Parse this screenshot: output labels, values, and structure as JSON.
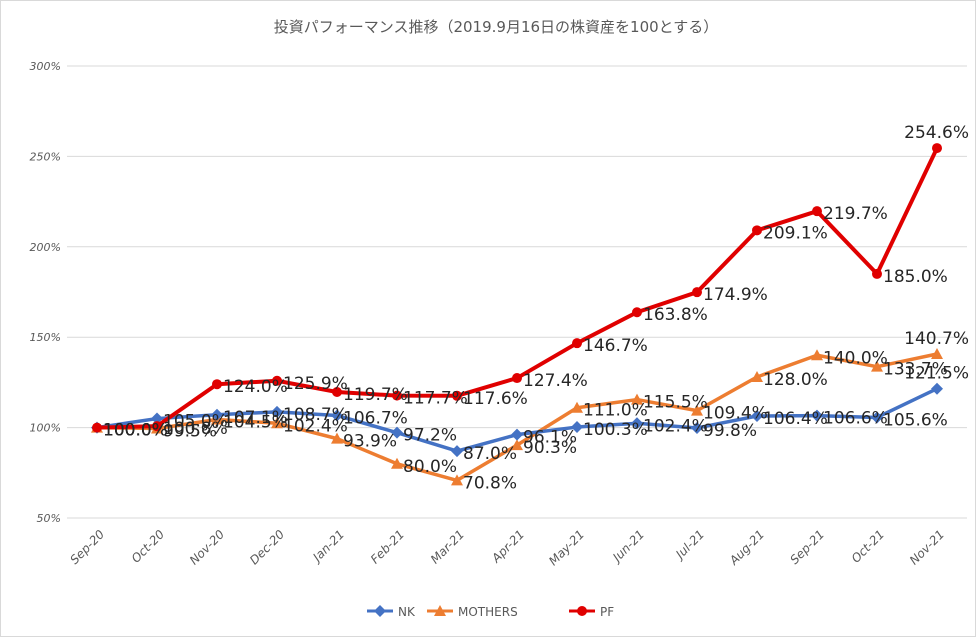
{
  "chart_data": {
    "type": "line",
    "title": "投資パフォーマンス推移（2019.9月16日の株資産を100とする）",
    "categories": [
      "Sep-20",
      "Oct-20",
      "Nov-20",
      "Dec-20",
      "Jan-21",
      "Feb-21",
      "Mar-21",
      "Apr-21",
      "May-21",
      "Jun-21",
      "Jul-21",
      "Aug-21",
      "Sep-21",
      "Oct-21",
      "Nov-21"
    ],
    "y_ticks": [
      "50%",
      "100%",
      "150%",
      "200%",
      "250%",
      "300%"
    ],
    "ylim": [
      50,
      300
    ],
    "grid": true,
    "legend_position": "bottom",
    "series": [
      {
        "name": "NK",
        "color": "#4472C4",
        "marker": "diamond",
        "values": [
          100.0,
          105.0,
          107.1,
          108.7,
          106.7,
          97.2,
          87.0,
          96.1,
          100.3,
          102.4,
          99.8,
          106.4,
          106.6,
          105.6,
          121.5
        ],
        "labels": [
          "100.0%",
          "105.0%",
          "107.1%",
          "108.7%",
          "106.7%",
          "97.2%",
          "87.0%",
          "96.1%",
          "100.3%",
          "102.4%",
          "99.8%",
          "106.4%",
          "106.6%",
          "105.6%",
          "121.5%"
        ]
      },
      {
        "name": "MOTHERS",
        "color": "#ED7D31",
        "marker": "triangle",
        "values": [
          100.0,
          99.5,
          104.5,
          102.4,
          93.9,
          80.0,
          70.8,
          90.3,
          111.0,
          115.5,
          109.4,
          128.0,
          140.0,
          133.7,
          140.7
        ],
        "labels": [
          "100.0%",
          "99.5%",
          "104.5%",
          "102.4%",
          "93.9%",
          "80.0%",
          "70.8%",
          "90.3%",
          "111.0%",
          "115.5%",
          "109.4%",
          "128.0%",
          "140.0%",
          "133.7%",
          "140.7%"
        ]
      },
      {
        "name": "PF",
        "color": "#E00000",
        "marker": "circle",
        "values": [
          100.0,
          100.8,
          124.0,
          125.9,
          119.7,
          117.7,
          117.6,
          127.4,
          146.7,
          163.8,
          174.9,
          209.1,
          219.7,
          185.0,
          254.6
        ],
        "labels": [
          "100.0%",
          "100.8%",
          "124.0%",
          "125.9%",
          "119.7%",
          "117.7%",
          "117.6%",
          "127.4%",
          "146.7%",
          "163.8%",
          "174.9%",
          "209.1%",
          "219.7%",
          "185.0%",
          "254.6%"
        ]
      }
    ]
  }
}
